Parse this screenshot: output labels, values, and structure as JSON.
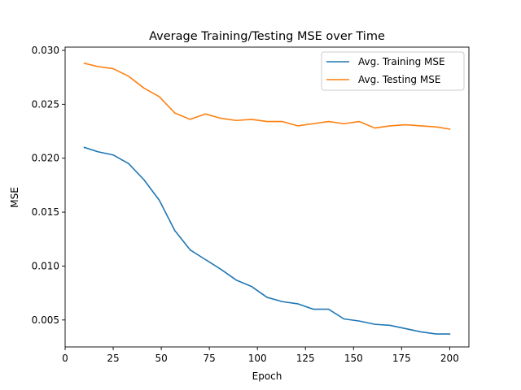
{
  "chart_data": {
    "type": "line",
    "title": "Average Training/Testing MSE over Time",
    "xlabel": "Epoch",
    "ylabel": "MSE",
    "xlim": [
      0,
      210
    ],
    "ylim": [
      0.0025,
      0.0303
    ],
    "xticks": [
      0,
      25,
      50,
      75,
      100,
      125,
      150,
      175,
      200
    ],
    "yticks": [
      0.005,
      0.01,
      0.015,
      0.02,
      0.025,
      0.03
    ],
    "xtick_labels": [
      "0",
      "25",
      "50",
      "75",
      "100",
      "125",
      "150",
      "175",
      "200"
    ],
    "ytick_labels": [
      "0.005",
      "0.010",
      "0.015",
      "0.020",
      "0.025",
      "0.030"
    ],
    "grid": false,
    "legend_position": "top-right",
    "x": [
      10,
      17,
      25,
      33,
      41,
      49,
      57,
      65,
      73,
      81,
      89,
      97,
      105,
      113,
      121,
      129,
      137,
      145,
      153,
      161,
      169,
      177,
      185,
      193,
      200
    ],
    "series": [
      {
        "name": "Avg. Training MSE",
        "color": "#1f77b4",
        "values": [
          0.021,
          0.0206,
          0.0203,
          0.0195,
          0.018,
          0.0161,
          0.0133,
          0.0115,
          0.0106,
          0.0097,
          0.0087,
          0.0081,
          0.0071,
          0.0067,
          0.0065,
          0.006,
          0.006,
          0.0051,
          0.0049,
          0.0046,
          0.0045,
          0.0042,
          0.0039,
          0.0037,
          0.0037
        ]
      },
      {
        "name": "Avg. Testing MSE",
        "color": "#ff7f0e",
        "values": [
          0.0288,
          0.0285,
          0.0283,
          0.0276,
          0.0265,
          0.0257,
          0.0242,
          0.0236,
          0.0241,
          0.0237,
          0.0235,
          0.0236,
          0.0234,
          0.0234,
          0.023,
          0.0232,
          0.0234,
          0.0232,
          0.0234,
          0.0228,
          0.023,
          0.0231,
          0.023,
          0.0229,
          0.0227
        ]
      }
    ]
  }
}
